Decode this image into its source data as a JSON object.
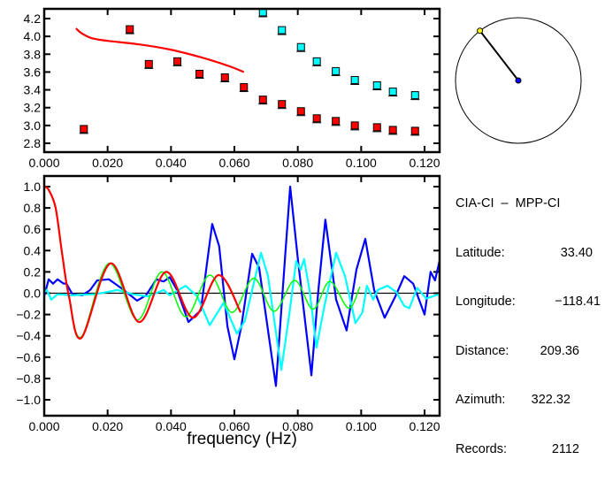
{
  "info": {
    "title": "CIA-CI  –  MPP-CI",
    "rows": [
      {
        "label": "Latitude:",
        "value": "33.40"
      },
      {
        "label": "Longitude:",
        "value": "−118.41"
      },
      {
        "label": "Distance:",
        "value": "209.36"
      },
      {
        "label": "Azimuth:",
        "value": "322.32"
      },
      {
        "label": "Records:",
        "value": "2112"
      }
    ],
    "azimuth_deg": 322.32
  },
  "colors": {
    "red": "#ff0000",
    "cyan": "#00ffff",
    "blue": "#0000ff",
    "green": "#00ff00",
    "station": "#ffff00"
  },
  "chart_data": [
    {
      "type": "scatter",
      "name": "velocity-dispersion",
      "xlim": [
        0,
        0.125
      ],
      "ylim": [
        2.7,
        4.3
      ],
      "xticks": [
        "0.000",
        "0.020",
        "0.040",
        "0.060",
        "0.080",
        "0.100",
        "0.120"
      ],
      "yticks": [
        "2.8",
        "3.0",
        "3.2",
        "3.4",
        "3.6",
        "3.8",
        "4.0",
        "4.2"
      ],
      "series": [
        {
          "name": "red-points",
          "color": "#ff0000",
          "kind": "points",
          "x": [
            0.0125,
            0.027,
            0.033,
            0.042,
            0.049,
            0.057,
            0.063,
            0.069,
            0.075,
            0.081,
            0.086,
            0.092,
            0.098,
            0.105,
            0.11,
            0.117
          ],
          "y": [
            2.96,
            4.08,
            3.69,
            3.72,
            3.58,
            3.54,
            3.43,
            3.29,
            3.24,
            3.16,
            3.08,
            3.05,
            3.0,
            2.98,
            2.95,
            2.94
          ]
        },
        {
          "name": "cyan-points",
          "color": "#00ffff",
          "kind": "points",
          "x": [
            0.069,
            0.075,
            0.081,
            0.086,
            0.092,
            0.098,
            0.105,
            0.11,
            0.117
          ],
          "y": [
            4.27,
            4.07,
            3.88,
            3.72,
            3.61,
            3.51,
            3.45,
            3.38,
            3.34
          ]
        },
        {
          "name": "red-model-curve",
          "color": "#ff0000",
          "kind": "line",
          "x": [
            0.01,
            0.012,
            0.015,
            0.02,
            0.03,
            0.04,
            0.05,
            0.058,
            0.063
          ],
          "y": [
            4.09,
            4.03,
            3.98,
            3.95,
            3.91,
            3.85,
            3.76,
            3.67,
            3.6
          ]
        }
      ]
    },
    {
      "type": "line",
      "name": "coherency-spectrum",
      "xlabel": "frequency (Hz)",
      "xlim": [
        0,
        0.125
      ],
      "ylim": [
        -1.1,
        1.1
      ],
      "xticks": [
        "0.000",
        "0.020",
        "0.040",
        "0.060",
        "0.080",
        "0.100",
        "0.120"
      ],
      "yticks": [
        "1.0",
        "0.8",
        "0.6",
        "0.4",
        "0.2",
        "0.0",
        "−0.2",
        "−0.4",
        "−0.6",
        "−0.8",
        "−1.0"
      ],
      "series": [
        {
          "name": "blue",
          "color": "#0000ff",
          "smooth": false,
          "x": [
            0,
            0.0014,
            0.0028,
            0.0042,
            0.0061,
            0.007,
            0.0089,
            0.012,
            0.0145,
            0.0167,
            0.0204,
            0.0223,
            0.0251,
            0.0293,
            0.0321,
            0.0354,
            0.0377,
            0.0396,
            0.0419,
            0.0455,
            0.0494,
            0.053,
            0.0552,
            0.0578,
            0.06,
            0.0622,
            0.0656,
            0.0678,
            0.0731,
            0.0759,
            0.0776,
            0.0801,
            0.0843,
            0.0865,
            0.0887,
            0.0921,
            0.0954,
            0.0985,
            0.1013,
            0.1041,
            0.1074,
            0.1108,
            0.1136,
            0.1164,
            0.12,
            0.1219,
            0.1233,
            0.1247
          ],
          "y": [
            -0.03,
            0.13,
            0.09,
            0.13,
            0.09,
            0.09,
            -0.01,
            -0.02,
            0.03,
            0.12,
            0.13,
            0.09,
            0.03,
            -0.07,
            -0.02,
            0.13,
            0.11,
            0.15,
            0.03,
            -0.27,
            -0.16,
            0.65,
            0.44,
            -0.31,
            -0.62,
            -0.31,
            0.37,
            0.24,
            -0.87,
            0.3,
            1.0,
            0.3,
            -0.77,
            0.03,
            0.69,
            -0.06,
            -0.35,
            0.22,
            0.51,
            0.03,
            -0.23,
            -0.03,
            0.16,
            0.09,
            -0.2,
            0.2,
            0.12,
            0.3
          ]
        },
        {
          "name": "cyan",
          "color": "#00ffff",
          "smooth": false,
          "x": [
            0,
            0.0008,
            0.0022,
            0.0042,
            0.0084,
            0.0159,
            0.0232,
            0.0279,
            0.0327,
            0.0377,
            0.0396,
            0.0446,
            0.0483,
            0.0522,
            0.0566,
            0.0608,
            0.0633,
            0.0684,
            0.0706,
            0.0748,
            0.0773,
            0.0795,
            0.0809,
            0.082,
            0.0837,
            0.0859,
            0.0884,
            0.0921,
            0.0949,
            0.0982,
            0.1004,
            0.1018,
            0.1038,
            0.1052,
            0.1083,
            0.1111,
            0.1136,
            0.1152,
            0.1177,
            0.1205,
            0.1247
          ],
          "y": [
            0.01,
            0.03,
            -0.06,
            -0.01,
            -0.02,
            -0.01,
            0.03,
            -0.01,
            -0.03,
            0.03,
            -0.02,
            0.07,
            -0.03,
            -0.3,
            -0.09,
            -0.38,
            -0.26,
            0.38,
            0.16,
            -0.72,
            -0.2,
            0.3,
            0.22,
            0.32,
            0.03,
            -0.51,
            -0.12,
            0.38,
            0.16,
            -0.28,
            -0.18,
            0.07,
            -0.06,
            0.03,
            0.07,
            0.01,
            -0.12,
            -0.14,
            0.05,
            -0.05,
            -0.01
          ]
        },
        {
          "name": "green",
          "color": "#00ff00",
          "smooth": true,
          "x": [
            0,
            0.0014,
            0.0036,
            0.0056,
            0.0078,
            0.0117,
            0.0204,
            0.0293,
            0.0371,
            0.0446,
            0.0522,
            0.0592,
            0.0661,
            0.0725,
            0.079,
            0.0848,
            0.0901,
            0.096,
            0.0996
          ],
          "y": [
            1.0,
            0.97,
            0.8,
            0.38,
            -0.03,
            -0.41,
            0.28,
            -0.25,
            0.2,
            -0.22,
            0.17,
            -0.18,
            0.14,
            -0.17,
            0.12,
            -0.15,
            0.11,
            -0.14,
            0.06
          ]
        },
        {
          "name": "red",
          "color": "#ff0000",
          "smooth": true,
          "x": [
            0,
            0.0014,
            0.0036,
            0.0056,
            0.0078,
            0.0117,
            0.0209,
            0.0299,
            0.0385,
            0.0469,
            0.055,
            0.062
          ],
          "y": [
            1.0,
            0.97,
            0.8,
            0.38,
            -0.03,
            -0.42,
            0.28,
            -0.27,
            0.2,
            -0.23,
            0.17,
            -0.18
          ]
        }
      ]
    }
  ]
}
